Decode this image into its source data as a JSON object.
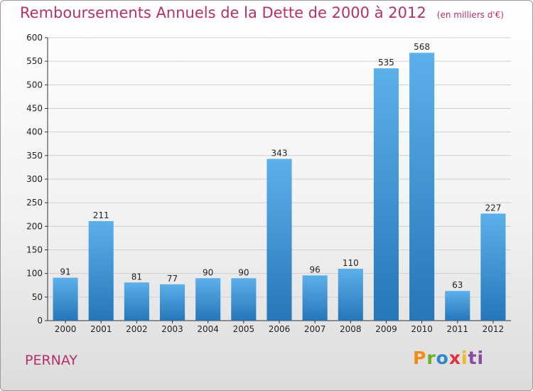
{
  "header": {
    "title": "Remboursements Annuels de la Dette de 2000 à 2012",
    "unit": "(en milliers d'€)"
  },
  "commune": "PERNAY",
  "logo": {
    "letters": [
      "P",
      "r",
      "o",
      "x",
      "i",
      "ti"
    ]
  },
  "colors": {
    "title": "#b5306b",
    "bar_top": "#5cb0ea",
    "bar_bottom": "#2676b8",
    "grid": "#cfcfcf"
  },
  "chart_data": {
    "type": "bar",
    "title": "Remboursements Annuels de la Dette de 2000 à 2012",
    "subtitle": "(en milliers d'€)",
    "xlabel": "",
    "ylabel": "",
    "categories": [
      "2000",
      "2001",
      "2002",
      "2003",
      "2004",
      "2005",
      "2006",
      "2007",
      "2008",
      "2009",
      "2010",
      "2011",
      "2012"
    ],
    "values": [
      91,
      211,
      81,
      77,
      90,
      90,
      343,
      96,
      110,
      535,
      568,
      63,
      227
    ],
    "ylim": [
      0,
      600
    ],
    "yticks": [
      0,
      50,
      100,
      150,
      200,
      250,
      300,
      350,
      400,
      450,
      500,
      550,
      600
    ],
    "grid": true,
    "data_labels": true,
    "legend": "none"
  }
}
